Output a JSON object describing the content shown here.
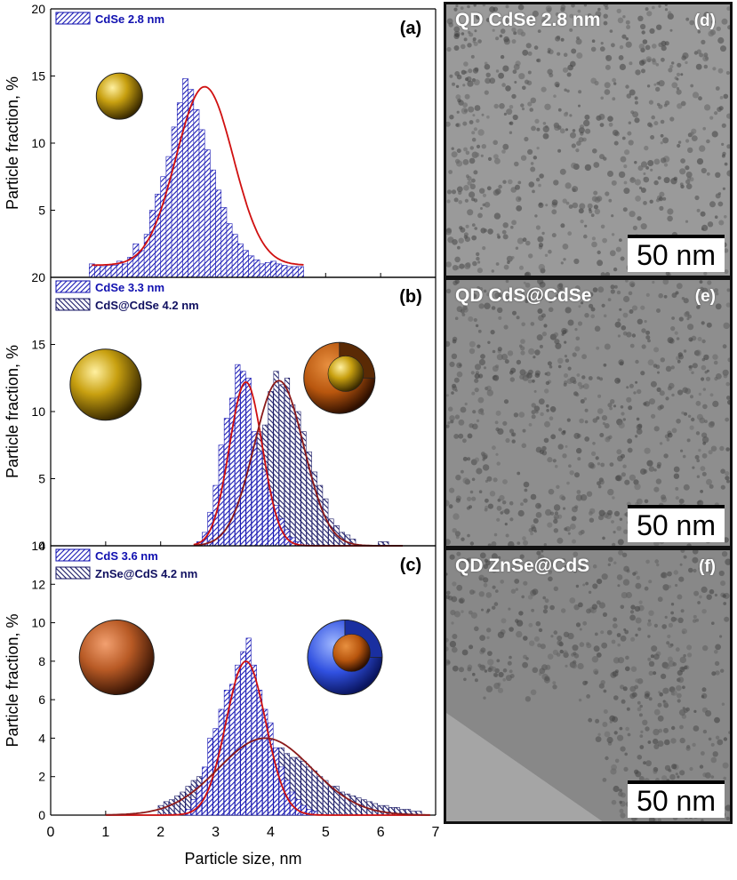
{
  "chart_data": [
    {
      "id": "a",
      "type": "bar",
      "panel_tag": "(a)",
      "ylabel": "Particle fraction, %",
      "ylim": [
        0,
        20
      ],
      "yticks": [
        0,
        5,
        10,
        15,
        20
      ],
      "ytick_labels": [
        "",
        "5",
        "10",
        "15",
        "20"
      ],
      "xlim": [
        0,
        7
      ],
      "legend": [
        {
          "label": "CdSe 2.8 nm",
          "hatch": "forward",
          "color": "#1010b0"
        }
      ],
      "series": [
        {
          "name": "CdSe 2.8 nm",
          "hatch": "forward",
          "bar_width": 0.1,
          "x": [
            0.75,
            0.85,
            0.95,
            1.05,
            1.15,
            1.25,
            1.35,
            1.45,
            1.55,
            1.65,
            1.75,
            1.85,
            1.95,
            2.05,
            2.15,
            2.25,
            2.35,
            2.45,
            2.55,
            2.65,
            2.75,
            2.85,
            2.95,
            3.05,
            3.15,
            3.25,
            3.35,
            3.45,
            3.55,
            3.65,
            3.75,
            3.85,
            3.95,
            4.05,
            4.15,
            4.25,
            4.35,
            4.45,
            4.55
          ],
          "values": [
            1.0,
            0.9,
            0.8,
            0.9,
            0.9,
            1.2,
            1.0,
            1.5,
            2.5,
            2.0,
            3.2,
            5.0,
            6.2,
            7.5,
            9.0,
            11.2,
            13.0,
            14.8,
            14.0,
            12.5,
            11.0,
            9.5,
            8.0,
            6.5,
            5.2,
            4.0,
            3.2,
            2.5,
            2.0,
            1.6,
            1.3,
            1.0,
            1.1,
            1.2,
            1.0,
            0.9,
            0.8,
            0.8,
            0.8
          ],
          "bar_colors": "#1a1ab5"
        }
      ],
      "fits": [
        {
          "color": "#d01010",
          "mean": 2.8,
          "sigma": 0.52,
          "peak": 14.2,
          "base": 0.9,
          "x_range": [
            0.75,
            4.6
          ]
        }
      ],
      "spheres": [
        {
          "kind": "plain",
          "color": "#c8a010",
          "cx_data": 1.25,
          "cy_data": 13.5,
          "r": 26
        }
      ]
    },
    {
      "id": "b",
      "type": "bar",
      "panel_tag": "(b)",
      "ylabel": "Particle fraction, %",
      "ylim": [
        0,
        20
      ],
      "yticks": [
        0,
        5,
        10,
        15,
        20
      ],
      "ytick_labels": [
        "0",
        "5",
        "10",
        "15",
        "20"
      ],
      "xlim": [
        0,
        7
      ],
      "legend": [
        {
          "label": "CdSe 3.3 nm",
          "hatch": "forward",
          "color": "#1010b0"
        },
        {
          "label": "CdS@CdSe 4.2 nm",
          "hatch": "back",
          "color": "#101060"
        }
      ],
      "series": [
        {
          "name": "CdSe 3.3 nm",
          "hatch": "forward",
          "bar_width": 0.09,
          "x": [
            2.7,
            2.8,
            2.9,
            3.0,
            3.1,
            3.2,
            3.3,
            3.4,
            3.5,
            3.6,
            3.7,
            3.8,
            3.9,
            4.0,
            4.1,
            4.2,
            4.3,
            4.4,
            4.5
          ],
          "values": [
            0.3,
            1.0,
            2.5,
            4.5,
            7.5,
            9.5,
            11.0,
            13.5,
            13.0,
            12.5,
            8.5,
            7.0,
            5.5,
            4.0,
            3.0,
            2.0,
            1.2,
            0.6,
            0.3
          ],
          "bar_colors": "#1a1ab5"
        },
        {
          "name": "CdS@CdSe 4.2 nm",
          "hatch": "back",
          "bar_width": 0.09,
          "x": [
            3.0,
            3.1,
            3.2,
            3.3,
            3.4,
            3.5,
            3.6,
            3.7,
            3.8,
            3.9,
            4.0,
            4.1,
            4.2,
            4.3,
            4.4,
            4.5,
            4.6,
            4.7,
            4.8,
            4.9,
            5.0,
            5.1,
            5.2,
            5.3,
            5.4,
            5.5,
            6.0,
            6.1
          ],
          "values": [
            0.5,
            1.0,
            1.5,
            2.5,
            3.5,
            4.5,
            6.0,
            7.5,
            8.5,
            9.0,
            11.5,
            13.0,
            12.0,
            12.5,
            10.5,
            10.0,
            8.5,
            7.0,
            5.5,
            4.5,
            3.5,
            2.0,
            1.5,
            1.0,
            0.8,
            0.5,
            0.3,
            0.3
          ],
          "bar_colors": "#1a1a66"
        }
      ],
      "fits": [
        {
          "color": "#d01010",
          "mean": 3.55,
          "sigma": 0.3,
          "peak": 12.2,
          "base": 0,
          "x_range": [
            2.6,
            6.4
          ]
        },
        {
          "color": "#8b1a1a",
          "mean": 4.15,
          "sigma": 0.45,
          "peak": 12.3,
          "base": 0,
          "x_range": [
            2.6,
            6.4
          ]
        }
      ],
      "spheres": [
        {
          "kind": "plain",
          "color": "#c8a010",
          "cx_data": 1.0,
          "cy_data": 12.0,
          "r": 40
        },
        {
          "kind": "coreshell",
          "color": "#b8560e",
          "core": "#c8a010",
          "cx_data": 5.25,
          "cy_data": 12.5,
          "r": 40
        }
      ]
    },
    {
      "id": "c",
      "type": "bar",
      "panel_tag": "(c)",
      "ylabel": "Particle fraction, %",
      "ylim": [
        0,
        14
      ],
      "yticks": [
        0,
        2,
        4,
        6,
        8,
        10,
        12,
        14
      ],
      "ytick_labels": [
        "0",
        "2",
        "4",
        "6",
        "8",
        "10",
        "12",
        "14"
      ],
      "xlim": [
        0,
        7
      ],
      "xticks": [
        0,
        1,
        2,
        3,
        4,
        5,
        6,
        7
      ],
      "xlabel": "Particle size, nm",
      "legend": [
        {
          "label": "CdS 3.6 nm",
          "hatch": "forward",
          "color": "#1010b0"
        },
        {
          "label": "ZnSe@CdS 4.2 nm",
          "hatch": "back",
          "color": "#101060"
        }
      ],
      "series": [
        {
          "name": "CdS 3.6 nm",
          "hatch": "forward",
          "bar_width": 0.09,
          "x": [
            2.5,
            2.6,
            2.7,
            2.8,
            2.9,
            3.0,
            3.1,
            3.2,
            3.3,
            3.4,
            3.5,
            3.6,
            3.7,
            3.8,
            3.9,
            4.0,
            4.1,
            4.2,
            4.3,
            4.4,
            4.5,
            4.6,
            4.7,
            4.8
          ],
          "values": [
            0.3,
            0.8,
            1.5,
            2.5,
            4.0,
            4.5,
            5.5,
            6.5,
            6.8,
            7.8,
            8.5,
            9.2,
            7.8,
            6.5,
            5.5,
            4.8,
            3.5,
            2.5,
            1.8,
            1.2,
            0.8,
            0.5,
            0.3,
            0.2
          ],
          "bar_colors": "#1a1ab5"
        },
        {
          "name": "ZnSe@CdS 4.2 nm",
          "hatch": "back",
          "bar_width": 0.09,
          "x": [
            2.0,
            2.1,
            2.2,
            2.3,
            2.4,
            2.5,
            2.6,
            2.7,
            2.8,
            2.9,
            3.0,
            3.1,
            3.2,
            3.3,
            3.4,
            3.5,
            3.6,
            3.7,
            3.8,
            3.9,
            4.0,
            4.1,
            4.2,
            4.3,
            4.4,
            4.5,
            4.6,
            4.7,
            4.8,
            4.9,
            5.0,
            5.1,
            5.2,
            5.3,
            5.4,
            5.5,
            5.6,
            5.7,
            5.8,
            5.9,
            6.0,
            6.1,
            6.2,
            6.3,
            6.4,
            6.5,
            6.6,
            6.7
          ],
          "values": [
            0.5,
            0.7,
            0.8,
            1.0,
            1.2,
            1.5,
            1.8,
            2.0,
            2.2,
            2.5,
            3.0,
            3.2,
            3.5,
            3.5,
            3.8,
            4.0,
            4.2,
            4.0,
            4.2,
            4.0,
            3.8,
            3.5,
            3.5,
            3.2,
            3.0,
            3.0,
            2.8,
            2.5,
            2.3,
            2.0,
            1.8,
            1.5,
            1.5,
            1.2,
            1.1,
            1.0,
            0.9,
            0.8,
            0.7,
            0.6,
            0.5,
            0.5,
            0.4,
            0.4,
            0.3,
            0.3,
            0.2,
            0.2
          ],
          "bar_colors": "#1a1a66"
        }
      ],
      "fits": [
        {
          "color": "#d01010",
          "mean": 3.55,
          "sigma": 0.36,
          "peak": 8.0,
          "base": 0,
          "x_range": [
            1.0,
            6.9
          ]
        },
        {
          "color": "#8b1a1a",
          "mean": 3.9,
          "sigma": 0.85,
          "peak": 4.0,
          "base": 0,
          "x_range": [
            1.0,
            6.9
          ]
        }
      ],
      "spheres": [
        {
          "kind": "plain",
          "color": "#b85a25",
          "cx_data": 1.2,
          "cy_data": 8.2,
          "r": 42
        },
        {
          "kind": "coreshell",
          "color": "#3050e0",
          "core": "#c0600e",
          "cx_data": 5.35,
          "cy_data": 8.2,
          "r": 42
        }
      ]
    }
  ],
  "tem_panels": [
    {
      "label": "QD CdSe 2.8 nm",
      "tag": "(d)",
      "scale": "50 nm",
      "tone": "#9a9a9a"
    },
    {
      "label": "QD CdS@CdSe",
      "tag": "(e)",
      "scale": "50 nm",
      "tone": "#8e8e8e"
    },
    {
      "label": "QD ZnSe@CdS",
      "tag": "(f)",
      "scale": "50 nm",
      "tone": "#888888"
    }
  ]
}
